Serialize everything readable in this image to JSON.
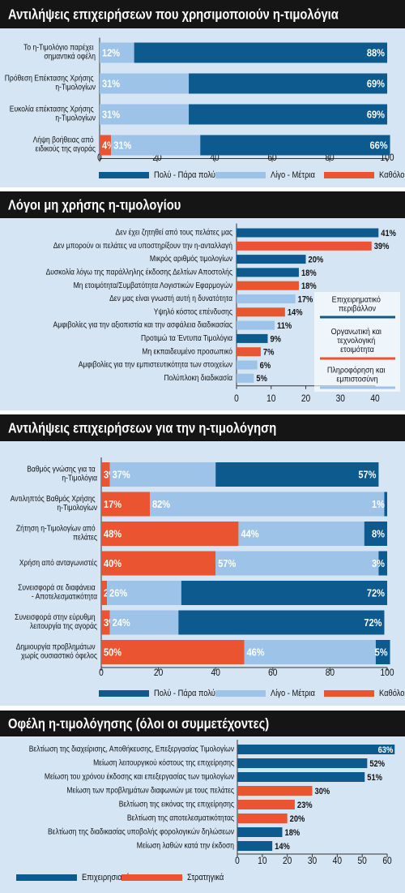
{
  "chart_data": [
    {
      "type": "bar",
      "orientation": "horizontal",
      "stacked": true,
      "title": "Αντιλήψεις επιχειρήσεων που χρησιμοποιούν η-τιμολόγια",
      "categories": [
        "Το η-Τιμολόγιο παρέχει σημαντικά οφέλη",
        "Πρόθεση Επέκτασης Χρήσης η-Τιμολογίων",
        "Ευκολία επέκτασης Χρήσης η-Τιμολογίων",
        "Λήψη βοήθειας από ειδικούς της αγοράς"
      ],
      "series": [
        {
          "name": "Πολύ - Πάρα πολύ",
          "color": "#0d5a8f",
          "values": [
            88,
            69,
            69,
            66
          ],
          "value_labels": [
            "88%",
            "69%",
            "69%",
            "66%"
          ]
        },
        {
          "name": "Λίγο - Μέτρια",
          "color": "#9dc4e8",
          "values": [
            12,
            31,
            31,
            31
          ],
          "value_labels": [
            "12%",
            "31%",
            "31%",
            "31%"
          ]
        },
        {
          "name": "Καθόλου",
          "color": "#ea5430",
          "values": [
            null,
            null,
            null,
            4
          ],
          "value_labels": [
            null,
            null,
            null,
            "4%"
          ]
        }
      ],
      "xlim": [
        0,
        100
      ],
      "xticks": [
        0,
        20,
        40,
        60,
        80,
        100
      ]
    },
    {
      "type": "bar",
      "orientation": "horizontal",
      "stacked": false,
      "title": "Λόγοι μη χρήσης η-τιμολογίου",
      "categories": [
        "Δεν έχει ζητηθεί από τους πελάτες μας",
        "Δεν μπορούν οι πελάτες να υποστηρίξουν την η-ανταλλαγή",
        "Μικρός αριθμός τιμολογίων",
        "Δυσκολία λόγω της παράλληλης έκδοσης Δελτίων Αποστολής",
        "Μη ετοιμότητα/Συμβατότητα Λογιστικών Εφαρμογών",
        "Δεν μας είναι γνωστή αυτή η δυνατότητα",
        "Υψηλό κόστος επένδυσης",
        "Αμφιβολίες για την αξιοπιστία και την ασφάλεια διαδικασίας",
        "Προτιμώ τα Έντυπα Τιμολόγια",
        "Μη εκπαιδευμένο προσωπικό",
        "Αμφιβολίες για την εμπιστευτικότητα των στοιχείων",
        "Πολύπλοκη διαδικασία"
      ],
      "series": [
        {
          "name": "Επιχειρηματικό περιβάλλον",
          "color": "#0d5a8f",
          "values": [
            41,
            null,
            20,
            18,
            null,
            null,
            null,
            null,
            9,
            null,
            null,
            null
          ],
          "value_labels": [
            "41%",
            null,
            "20%",
            "18%",
            null,
            null,
            null,
            null,
            "9%",
            null,
            null,
            null
          ]
        },
        {
          "name": "Οργανωτική και τεχνολογική ετοιμότητα",
          "color": "#ea5430",
          "values": [
            null,
            39,
            null,
            null,
            18,
            null,
            14,
            null,
            null,
            7,
            null,
            null
          ],
          "value_labels": [
            null,
            "39%",
            null,
            null,
            "18%",
            null,
            "14%",
            null,
            null,
            "7%",
            null,
            null
          ]
        },
        {
          "name": "Πληροφόρηση και εμπιστοσύνη",
          "color": "#9dc4e8",
          "values": [
            null,
            null,
            null,
            null,
            null,
            17,
            null,
            11,
            null,
            null,
            6,
            5
          ],
          "value_labels": [
            null,
            null,
            null,
            null,
            null,
            "17%",
            null,
            "11%",
            null,
            null,
            "6%",
            "5%"
          ]
        }
      ],
      "xlim": [
        0,
        40
      ],
      "xticks": [
        0,
        10,
        20,
        30,
        40
      ]
    },
    {
      "type": "bar",
      "orientation": "horizontal",
      "stacked": true,
      "title": "Αντιλήψεις επιχειρήσεων για την η-τιμολόγηση",
      "categories": [
        "Βαθμός γνώσης για τα η-Τιμολόγια",
        "Αντιληπτός Βαθμός Χρήσης η-Τιμολογίων",
        "Ζήτηση η-Τιμολογίων από πελάτες",
        "Χρήση από ανταγωνιστές",
        "Συνεισφορά σε διαφάνεια - Αποτελεσματικότητα",
        "Συνεισφορά στην εύρυθμη λειτουργία της αγοράς",
        "Δημιουργία προβλημάτων χωρίς ουσιαστικό όφελος"
      ],
      "series": [
        {
          "name": "Πολύ - Πάρα πολύ",
          "color": "#0d5a8f",
          "values": [
            57,
            1,
            8,
            3,
            72,
            72,
            5
          ],
          "value_labels": [
            "57%",
            "1%",
            "8%",
            "3%",
            "72%",
            "72%",
            "5%"
          ]
        },
        {
          "name": "Λίγο - Μέτρια",
          "color": "#9dc4e8",
          "values": [
            37,
            82,
            44,
            57,
            26,
            24,
            46
          ],
          "value_labels": [
            "37%",
            "82%",
            "44%",
            "57%",
            "26%",
            "24%",
            "46%"
          ]
        },
        {
          "name": "Καθόλου",
          "color": "#ea5430",
          "values": [
            3,
            17,
            48,
            40,
            2,
            3,
            50
          ],
          "value_labels": [
            "3%",
            "17%",
            "48%",
            "40%",
            "2%",
            "3%",
            "50%"
          ]
        }
      ],
      "xlim": [
        0,
        100
      ],
      "xticks": [
        0,
        20,
        40,
        60,
        80,
        100
      ]
    },
    {
      "type": "bar",
      "orientation": "horizontal",
      "stacked": false,
      "title": "Οφέλη η-τιμολόγησης (όλοι οι συμμετέχοντες)",
      "categories": [
        "Βελτίωση της διαχείρισης, Αποθήκευσης, Επεξεργασίας Τιμολογίων",
        "Μείωση λειτουργικού κόστους της επιχείρησης",
        "Μείωση του χρόνου έκδοσης και επεξεργασίας των τιμολογίων",
        "Μείωση των προβλημάτων διαφωνιών με τους πελάτες",
        "Βελτίωση της εικόνας της επιχείρησης",
        "Βελτίωση της αποτελεσματικότητας",
        "Βελτίωση της διαδικασίας υποβολής φορολογικών δηλώσεων",
        "Μείωση λαθών κατά την έκδοση"
      ],
      "series": [
        {
          "name": "Επιχειρησιακά",
          "color": "#0d5a8f",
          "values": [
            63,
            52,
            51,
            null,
            null,
            null,
            18,
            14
          ],
          "value_labels": [
            "63%",
            "52%",
            "51%",
            null,
            null,
            null,
            "18%",
            "14%"
          ]
        },
        {
          "name": "Στρατηγικά",
          "color": "#ea5430",
          "values": [
            null,
            null,
            null,
            30,
            23,
            20,
            null,
            null
          ],
          "value_labels": [
            null,
            null,
            null,
            "30%",
            "23%",
            "20%",
            null,
            null
          ]
        }
      ],
      "xlim": [
        0,
        60
      ],
      "xticks": [
        0,
        10,
        20,
        30,
        40,
        50,
        60
      ]
    }
  ]
}
